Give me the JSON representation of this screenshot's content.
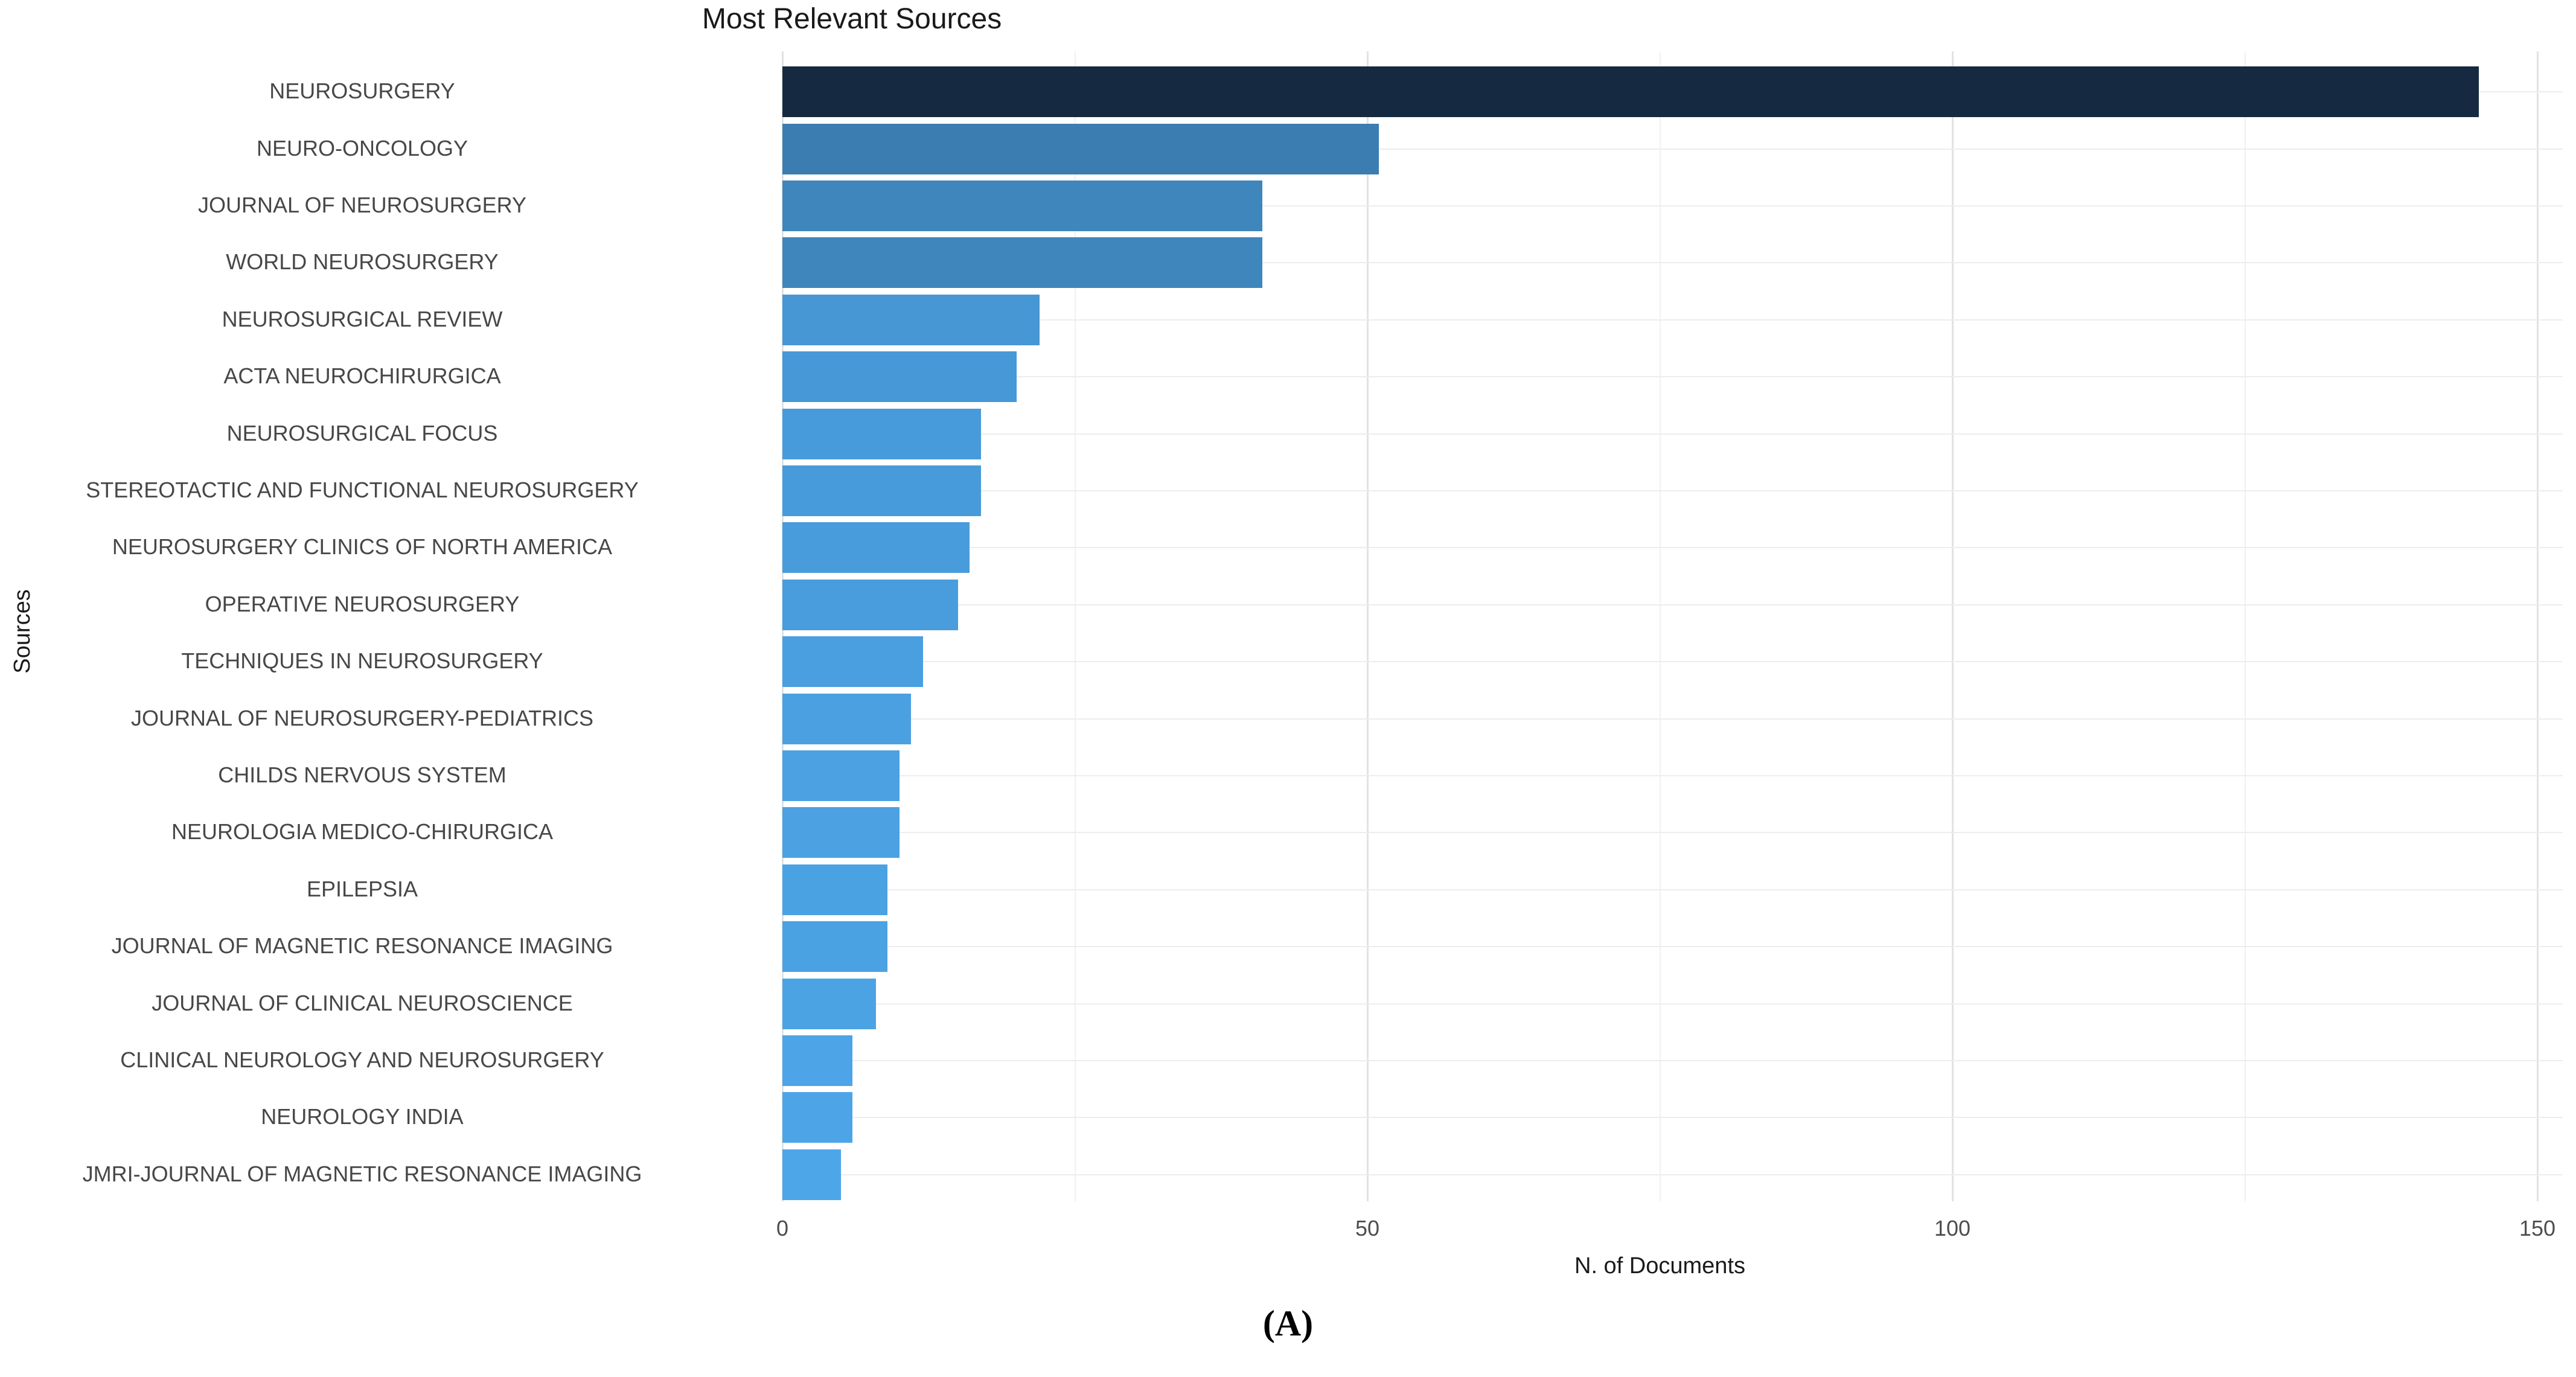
{
  "chart_data": {
    "type": "bar",
    "orientation": "horizontal",
    "title": "Most Relevant Sources",
    "xlabel": "N. of Documents",
    "ylabel": "Sources",
    "caption": "(A)",
    "categories": [
      "NEUROSURGERY",
      "NEURO-ONCOLOGY",
      "JOURNAL OF NEUROSURGERY",
      "WORLD NEUROSURGERY",
      "NEUROSURGICAL REVIEW",
      "ACTA NEUROCHIRURGICA",
      "NEUROSURGICAL FOCUS",
      "STEREOTACTIC AND FUNCTIONAL NEUROSURGERY",
      "NEUROSURGERY CLINICS OF NORTH AMERICA",
      "OPERATIVE NEUROSURGERY",
      "TECHNIQUES IN NEUROSURGERY",
      "JOURNAL OF NEUROSURGERY-PEDIATRICS",
      "CHILDS NERVOUS SYSTEM",
      "NEUROLOGIA MEDICO-CHIRURGICA",
      "EPILEPSIA",
      "JOURNAL OF MAGNETIC RESONANCE IMAGING",
      "JOURNAL OF CLINICAL NEUROSCIENCE",
      "CLINICAL NEUROLOGY AND NEUROSURGERY",
      "NEUROLOGY INDIA",
      "JMRI-JOURNAL OF MAGNETIC RESONANCE IMAGING"
    ],
    "values": [
      145,
      51,
      41,
      41,
      22,
      20,
      17,
      17,
      16,
      15,
      12,
      11,
      10,
      10,
      9,
      9,
      8,
      6,
      6,
      5
    ],
    "xlim": [
      0,
      150
    ],
    "xticks": [
      0,
      50,
      100,
      150
    ],
    "xticks_minor": [
      25,
      75,
      125
    ],
    "grid": true,
    "legend": false,
    "bar_color_low": "#4FAAEE",
    "bar_color_high": "#152A40",
    "background": "#FFFFFF"
  }
}
